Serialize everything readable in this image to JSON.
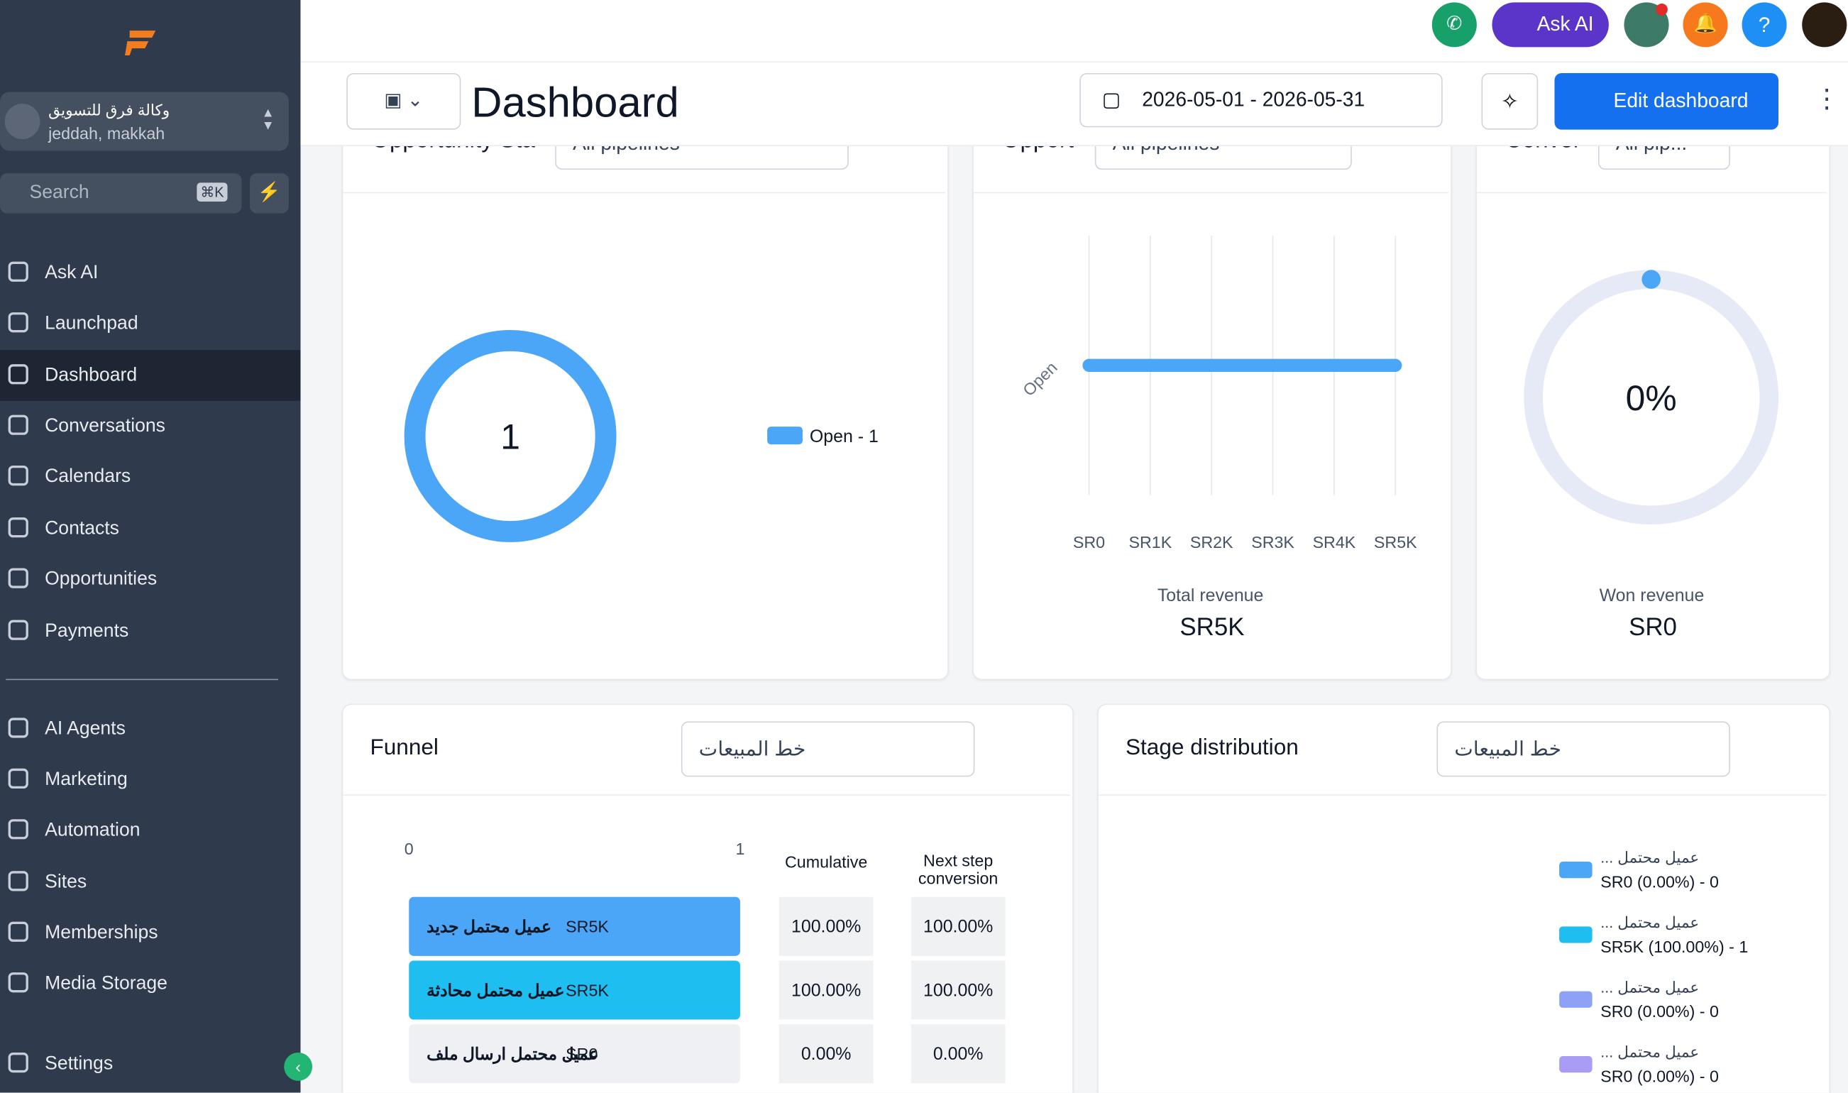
{
  "sidebar": {
    "account": {
      "name": "وكالة فرق للتسويق",
      "location": "jeddah, makkah"
    },
    "search": {
      "placeholder": "Search",
      "shortcut": "⌘K"
    },
    "nav": [
      "Ask AI",
      "Launchpad",
      "Dashboard",
      "Conversations",
      "Calendars",
      "Contacts",
      "Opportunities",
      "Payments"
    ],
    "nav2": [
      "AI Agents",
      "Marketing",
      "Automation",
      "Sites",
      "Memberships",
      "Media Storage"
    ],
    "settings": "Settings"
  },
  "topbar": {
    "ask_ai": "Ask AI"
  },
  "header": {
    "title": "Dashboard",
    "date_range": "2026-05-01 - 2026-05-31",
    "edit": "Edit dashboard"
  },
  "widgets": {
    "status": {
      "title": "Opportunity Sta",
      "filter": "All pipelines",
      "total": 1,
      "series": [
        {
          "name": "Open - 1",
          "value": 1,
          "color": "#4ba6f7"
        }
      ]
    },
    "revenue": {
      "title": "Opport",
      "filter": "All pipelines",
      "categories": [
        "Open"
      ],
      "values": [
        5000
      ],
      "color": "#4ba6f7",
      "xlim": [
        0,
        5000
      ],
      "xticks": [
        {
          "value": 0,
          "label": "SR0"
        },
        {
          "value": 1000,
          "label": "SR1K"
        },
        {
          "value": 2000,
          "label": "SR2K"
        },
        {
          "value": 3000,
          "label": "SR3K"
        },
        {
          "value": 4000,
          "label": "SR4K"
        },
        {
          "value": 5000,
          "label": "SR5K"
        }
      ],
      "footer_label": "Total revenue",
      "footer_value": "SR5K"
    },
    "conversion": {
      "title": "Conver",
      "filter": "All pip...",
      "value": 0,
      "value_label": "0%",
      "footer_label": "Won revenue",
      "footer_value": "SR0"
    },
    "funnel": {
      "title": "Funnel",
      "filter": "خط المبيعات",
      "xlim": [
        0,
        1
      ],
      "xticks": [
        0,
        1
      ],
      "columns": [
        "Cumulative",
        "Next step conversion"
      ],
      "rows": [
        {
          "stage": "عميل محتمل جديد",
          "revenue": "SR5K",
          "count": 1,
          "color": "#4ba6f7",
          "cumulative": "100.00%",
          "next": "100.00%"
        },
        {
          "stage": "عميل محتمل محادثة",
          "revenue": "SR5K",
          "count": 1,
          "color": "#1fbef0",
          "cumulative": "100.00%",
          "next": "100.00%"
        },
        {
          "stage": "عميل محتمل ارسال ملف",
          "revenue": "SR0",
          "count": 0,
          "color": "#8da2f7",
          "cumulative": "0.00%",
          "next": "0.00%"
        }
      ]
    },
    "stages": {
      "title": "Stage distribution",
      "filter": "خط المبيعات",
      "legend": [
        {
          "name": "عميل محتمل ...",
          "label": "SR0 (0.00%) - 0",
          "color": "#4ba6f7"
        },
        {
          "name": "عميل محتمل ...",
          "label": "SR5K (100.00%) - 1",
          "color": "#1fbef0"
        },
        {
          "name": "عميل محتمل ...",
          "label": "SR0 (0.00%) - 0",
          "color": "#8da2f7"
        },
        {
          "name": "عميل محتمل ...",
          "label": "SR0 (0.00%) - 0",
          "color": "#a99cf5"
        }
      ]
    }
  }
}
